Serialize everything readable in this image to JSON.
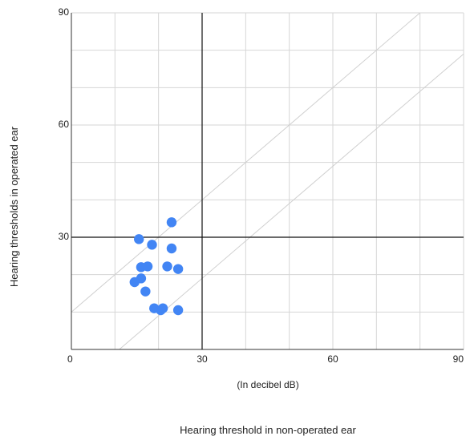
{
  "chart_data": {
    "type": "scatter",
    "title": "",
    "xlabel": "Hearing threshold in non-operated ear",
    "ylabel": "Hearing thresholds in operated ear",
    "x_unit_note": "(In decibel dB)",
    "xlim": [
      0,
      90
    ],
    "ylim": [
      0,
      90
    ],
    "x_ticks": [
      "0",
      "30",
      "60",
      "90"
    ],
    "y_ticks": [
      "30",
      "60",
      "90"
    ],
    "grid": true,
    "legend": "none",
    "point_color": "#4285f4",
    "reference_lines": [
      {
        "orientation": "vertical",
        "x": 30
      },
      {
        "orientation": "horizontal",
        "y": 30
      }
    ],
    "diagonal_lines": [
      {
        "from": [
          0,
          10
        ],
        "to": [
          80,
          90
        ]
      },
      {
        "from": [
          11,
          0
        ],
        "to": [
          90,
          79
        ]
      }
    ],
    "points": [
      {
        "x": 23.0,
        "y": 34.0
      },
      {
        "x": 15.5,
        "y": 29.5
      },
      {
        "x": 18.5,
        "y": 28.0
      },
      {
        "x": 23.0,
        "y": 27.0
      },
      {
        "x": 16.0,
        "y": 22.0
      },
      {
        "x": 17.5,
        "y": 22.2
      },
      {
        "x": 22.0,
        "y": 22.2
      },
      {
        "x": 24.5,
        "y": 21.5
      },
      {
        "x": 14.5,
        "y": 18.0
      },
      {
        "x": 16.0,
        "y": 19.0
      },
      {
        "x": 17.0,
        "y": 15.5
      },
      {
        "x": 19.0,
        "y": 11.0
      },
      {
        "x": 20.5,
        "y": 10.5
      },
      {
        "x": 21.0,
        "y": 11.0
      },
      {
        "x": 24.5,
        "y": 10.5
      }
    ]
  }
}
